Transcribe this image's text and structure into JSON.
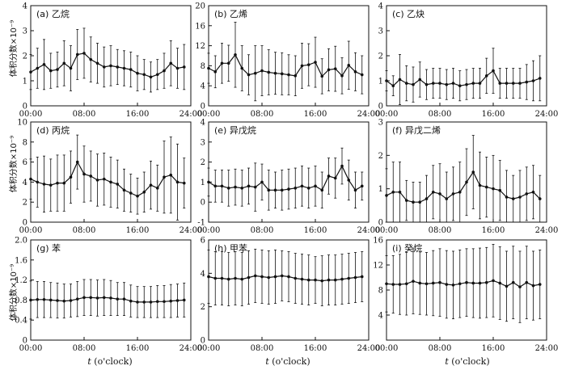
{
  "figure": {
    "ylabel": "体积分数×10⁻⁹",
    "xlabel_var": "t",
    "xlabel_rest": " (o'clock)"
  },
  "chart_data": [
    {
      "type": "line",
      "title": "(a) 乙烷",
      "xticks": [
        "00:00",
        "08:00",
        "16:00",
        "24:00"
      ],
      "xlim": [
        0,
        24
      ],
      "ylim": [
        0,
        4
      ],
      "yticks": [
        0,
        1,
        2,
        3,
        4
      ],
      "x": [
        0,
        1,
        2,
        3,
        4,
        5,
        6,
        7,
        8,
        9,
        10,
        11,
        12,
        13,
        14,
        15,
        16,
        17,
        18,
        19,
        20,
        21,
        22,
        23
      ],
      "values": [
        1.35,
        1.5,
        1.65,
        1.4,
        1.45,
        1.7,
        1.5,
        2.05,
        2.1,
        1.85,
        1.7,
        1.55,
        1.6,
        1.55,
        1.5,
        1.45,
        1.3,
        1.25,
        1.15,
        1.25,
        1.4,
        1.7,
        1.5,
        1.55
      ],
      "errors": [
        0.7,
        0.8,
        1.0,
        0.7,
        0.7,
        0.9,
        0.9,
        1.0,
        1.0,
        0.9,
        0.8,
        0.8,
        0.8,
        0.7,
        0.7,
        0.7,
        0.7,
        0.6,
        0.6,
        0.6,
        0.7,
        0.9,
        0.8,
        0.9
      ]
    },
    {
      "type": "line",
      "title": "(b) 乙烯",
      "xticks": [
        "00:00",
        "08:00",
        "16:00",
        "24:00"
      ],
      "xlim": [
        0,
        24
      ],
      "ylim": [
        0,
        20
      ],
      "yticks": [
        0,
        4,
        8,
        12,
        16,
        20
      ],
      "x": [
        0,
        1,
        2,
        3,
        4,
        5,
        6,
        7,
        8,
        9,
        10,
        11,
        12,
        13,
        14,
        15,
        16,
        17,
        18,
        19,
        20,
        21,
        22,
        23
      ],
      "values": [
        7.5,
        6.8,
        8.5,
        8.5,
        10.2,
        7.5,
        6.2,
        6.5,
        7.0,
        6.7,
        6.5,
        6.4,
        6.2,
        6.0,
        8.0,
        8.2,
        8.7,
        5.9,
        7.2,
        7.4,
        6.0,
        8.1,
        6.8,
        6.2
      ],
      "errors": [
        3.0,
        3.2,
        4.0,
        3.6,
        6.5,
        4.5,
        4.0,
        5.5,
        5.0,
        4.5,
        4.2,
        4.2,
        4.0,
        4.0,
        4.5,
        4.2,
        5.0,
        3.5,
        4.2,
        4.5,
        3.6,
        4.8,
        3.8,
        3.8
      ]
    },
    {
      "type": "line",
      "title": "(c) 乙炔",
      "xticks": [
        "00:00",
        "08:00",
        "16:00",
        "24:00"
      ],
      "xlim": [
        0,
        24
      ],
      "ylim": [
        0,
        4
      ],
      "yticks": [
        0,
        1,
        2,
        3,
        4
      ],
      "x": [
        0,
        1,
        2,
        3,
        4,
        5,
        6,
        7,
        8,
        9,
        10,
        11,
        12,
        13,
        14,
        15,
        16,
        17,
        18,
        19,
        20,
        21,
        22,
        23
      ],
      "values": [
        1.0,
        0.8,
        1.05,
        0.9,
        0.85,
        1.05,
        0.85,
        0.9,
        0.9,
        0.85,
        0.9,
        0.8,
        0.85,
        0.9,
        0.9,
        1.2,
        1.4,
        0.9,
        0.9,
        0.9,
        0.9,
        0.95,
        1.0,
        1.1
      ],
      "errors": [
        0.4,
        0.4,
        1.0,
        0.7,
        0.7,
        0.7,
        0.6,
        0.6,
        0.6,
        0.6,
        0.6,
        0.6,
        0.6,
        0.6,
        0.6,
        0.7,
        0.9,
        0.6,
        0.6,
        0.6,
        0.6,
        0.7,
        0.8,
        0.9
      ]
    },
    {
      "type": "line",
      "title": "(d) 丙烷",
      "xticks": [
        "00:00",
        "08:00",
        "16:00",
        "24:00"
      ],
      "xlim": [
        0,
        24
      ],
      "ylim": [
        0,
        10
      ],
      "yticks": [
        0,
        2,
        4,
        6,
        8,
        10
      ],
      "x": [
        0,
        1,
        2,
        3,
        4,
        5,
        6,
        7,
        8,
        9,
        10,
        11,
        12,
        13,
        14,
        15,
        16,
        17,
        18,
        19,
        20,
        21,
        22,
        23
      ],
      "values": [
        4.3,
        4.0,
        3.8,
        3.7,
        3.9,
        3.9,
        4.5,
        6.0,
        4.8,
        4.6,
        4.2,
        4.3,
        4.0,
        3.8,
        3.2,
        2.9,
        2.6,
        3.0,
        3.7,
        3.4,
        4.5,
        4.7,
        4.0,
        3.9
      ],
      "errors": [
        2.0,
        2.5,
        2.8,
        2.6,
        2.8,
        2.8,
        2.6,
        2.7,
        2.8,
        2.5,
        2.6,
        2.6,
        2.5,
        2.4,
        2.1,
        1.9,
        1.8,
        2.0,
        2.4,
        2.3,
        3.6,
        3.8,
        3.8,
        2.5
      ]
    },
    {
      "type": "line",
      "title": "(e) 异戊烷",
      "xticks": [
        "00:00",
        "08:00",
        "16:00",
        "24:00"
      ],
      "xlim": [
        0,
        24
      ],
      "ylim": [
        -1,
        4
      ],
      "yticks": [
        -1,
        0,
        1,
        2,
        3,
        4
      ],
      "x": [
        0,
        1,
        2,
        3,
        4,
        5,
        6,
        7,
        8,
        9,
        10,
        11,
        12,
        13,
        14,
        15,
        16,
        17,
        18,
        19,
        20,
        21,
        22,
        23
      ],
      "values": [
        1.0,
        0.8,
        0.8,
        0.7,
        0.75,
        0.7,
        0.8,
        0.75,
        1.0,
        0.6,
        0.6,
        0.6,
        0.65,
        0.7,
        0.8,
        0.7,
        0.8,
        0.6,
        1.3,
        1.2,
        1.8,
        1.1,
        0.6,
        0.8
      ],
      "errors": [
        0.7,
        0.8,
        0.8,
        0.9,
        0.9,
        0.9,
        0.9,
        1.2,
        0.9,
        1.0,
        0.9,
        1.0,
        1.0,
        1.0,
        1.0,
        1.0,
        1.0,
        0.9,
        0.9,
        1.0,
        0.9,
        1.0,
        0.9,
        0.7
      ]
    },
    {
      "type": "line",
      "title": "(f) 异戊二烯",
      "xticks": [
        "00:00",
        "08:00",
        "16:00",
        "24:00"
      ],
      "xlim": [
        0,
        24
      ],
      "ylim": [
        0,
        3
      ],
      "yticks": [
        0,
        1,
        2,
        3
      ],
      "x": [
        0,
        1,
        2,
        3,
        4,
        5,
        6,
        7,
        8,
        9,
        10,
        11,
        12,
        13,
        14,
        15,
        16,
        17,
        18,
        19,
        20,
        21,
        22,
        23
      ],
      "values": [
        0.8,
        0.9,
        0.9,
        0.65,
        0.6,
        0.6,
        0.7,
        0.9,
        0.85,
        0.7,
        0.85,
        0.9,
        1.2,
        1.5,
        1.1,
        1.05,
        1.0,
        0.95,
        0.75,
        0.7,
        0.75,
        0.85,
        0.9,
        0.7
      ],
      "errors": [
        0.8,
        0.9,
        0.9,
        0.6,
        0.6,
        0.6,
        0.7,
        0.8,
        0.9,
        0.8,
        0.8,
        0.9,
        1.0,
        1.1,
        1.0,
        0.9,
        1.0,
        0.9,
        0.8,
        0.7,
        0.8,
        0.8,
        0.8,
        0.7
      ]
    },
    {
      "type": "line",
      "title": "(g) 苯",
      "xticks": [
        "00:00",
        "08:00",
        "16:00",
        "24:00"
      ],
      "xlim": [
        0,
        24
      ],
      "ylim": [
        0,
        2.0
      ],
      "yticks": [
        0,
        0.4,
        0.8,
        1.2,
        1.6,
        2.0
      ],
      "yticklabels": [
        "0",
        "0.4",
        "0.8",
        "1.2",
        "1.6",
        "2.0"
      ],
      "x": [
        0,
        1,
        2,
        3,
        4,
        5,
        6,
        7,
        8,
        9,
        10,
        11,
        12,
        13,
        14,
        15,
        16,
        17,
        18,
        19,
        20,
        21,
        22,
        23
      ],
      "values": [
        0.8,
        0.81,
        0.81,
        0.8,
        0.79,
        0.78,
        0.79,
        0.82,
        0.85,
        0.85,
        0.84,
        0.85,
        0.84,
        0.82,
        0.82,
        0.78,
        0.76,
        0.76,
        0.76,
        0.77,
        0.77,
        0.78,
        0.79,
        0.8
      ],
      "errors": [
        0.38,
        0.36,
        0.36,
        0.35,
        0.35,
        0.34,
        0.33,
        0.35,
        0.36,
        0.36,
        0.36,
        0.36,
        0.35,
        0.33,
        0.33,
        0.32,
        0.31,
        0.31,
        0.31,
        0.32,
        0.32,
        0.33,
        0.33,
        0.34
      ]
    },
    {
      "type": "line",
      "title": "(h) 甲苯",
      "xticks": [
        "00:00",
        "08:00",
        "16:00",
        "24:00"
      ],
      "xlim": [
        0,
        24
      ],
      "ylim": [
        0,
        6
      ],
      "yticks": [
        0,
        2,
        4,
        6
      ],
      "x": [
        0,
        1,
        2,
        3,
        4,
        5,
        6,
        7,
        8,
        9,
        10,
        11,
        12,
        13,
        14,
        15,
        16,
        17,
        18,
        19,
        20,
        21,
        22,
        23
      ],
      "values": [
        3.8,
        3.7,
        3.7,
        3.65,
        3.7,
        3.65,
        3.75,
        3.85,
        3.8,
        3.75,
        3.8,
        3.85,
        3.8,
        3.7,
        3.65,
        3.6,
        3.6,
        3.55,
        3.6,
        3.6,
        3.65,
        3.7,
        3.75,
        3.8
      ],
      "errors": [
        1.6,
        1.6,
        1.6,
        1.6,
        1.6,
        1.6,
        1.6,
        1.6,
        1.6,
        1.6,
        1.6,
        1.5,
        1.5,
        1.5,
        1.5,
        1.5,
        1.4,
        1.5,
        1.5,
        1.5,
        1.5,
        1.5,
        1.5,
        1.5
      ]
    },
    {
      "type": "line",
      "title": "(i) 癸烷",
      "xticks": [
        "00:00",
        "08:00",
        "16:00",
        "24:00"
      ],
      "xlim": [
        0,
        24
      ],
      "ylim": [
        0,
        16
      ],
      "yticks": [
        4,
        8,
        12,
        16
      ],
      "x": [
        0,
        1,
        2,
        3,
        4,
        5,
        6,
        7,
        8,
        9,
        10,
        11,
        12,
        13,
        14,
        15,
        16,
        17,
        18,
        19,
        20,
        21,
        22,
        23
      ],
      "values": [
        9.0,
        8.9,
        8.9,
        9.0,
        9.4,
        9.1,
        9.0,
        9.1,
        9.2,
        8.9,
        8.8,
        9.0,
        9.2,
        9.1,
        9.1,
        9.2,
        9.5,
        9.1,
        8.6,
        9.2,
        8.5,
        9.2,
        8.7,
        8.9
      ],
      "errors": [
        4.5,
        4.6,
        4.8,
        5.0,
        5.2,
        5.0,
        5.0,
        5.2,
        5.4,
        5.4,
        5.4,
        5.4,
        5.4,
        5.5,
        5.6,
        5.6,
        5.8,
        5.8,
        5.6,
        5.8,
        5.7,
        5.8,
        5.5,
        5.5
      ]
    }
  ]
}
